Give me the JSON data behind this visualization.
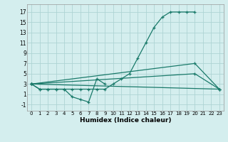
{
  "xlabel": "Humidex (Indice chaleur)",
  "bg_color": "#d4eeee",
  "grid_color": "#aed4d4",
  "line_color": "#1a7a6a",
  "x_ticks": [
    0,
    1,
    2,
    3,
    4,
    5,
    6,
    7,
    8,
    9,
    10,
    11,
    12,
    13,
    14,
    15,
    16,
    17,
    18,
    19,
    20,
    21,
    22,
    23
  ],
  "y_ticks": [
    -1,
    1,
    3,
    5,
    7,
    9,
    11,
    13,
    15,
    17
  ],
  "ylim": [
    -2.2,
    18.5
  ],
  "xlim": [
    -0.5,
    23.5
  ],
  "series": [
    {
      "x": [
        0,
        1,
        2,
        3,
        4,
        5,
        6,
        7,
        8,
        9
      ],
      "y": [
        3,
        2,
        2,
        2,
        2,
        0.5,
        0,
        -0.5,
        4,
        3
      ]
    },
    {
      "x": [
        0,
        1,
        2,
        3,
        4,
        5,
        6,
        7,
        8,
        9,
        10,
        11,
        12,
        13,
        14,
        15,
        16,
        17,
        18,
        19,
        20,
        21,
        22,
        23
      ],
      "y": [
        3,
        2,
        2,
        2,
        2,
        2,
        2,
        2,
        2,
        2,
        3,
        4,
        5,
        8,
        11,
        14,
        16,
        17,
        17,
        17,
        17,
        null,
        null,
        null
      ]
    },
    {
      "x": [
        0,
        23
      ],
      "y": [
        3,
        2
      ]
    },
    {
      "x": [
        0,
        20,
        23
      ],
      "y": [
        3,
        7,
        2
      ]
    },
    {
      "x": [
        0,
        20,
        23
      ],
      "y": [
        3,
        5,
        2
      ]
    }
  ]
}
